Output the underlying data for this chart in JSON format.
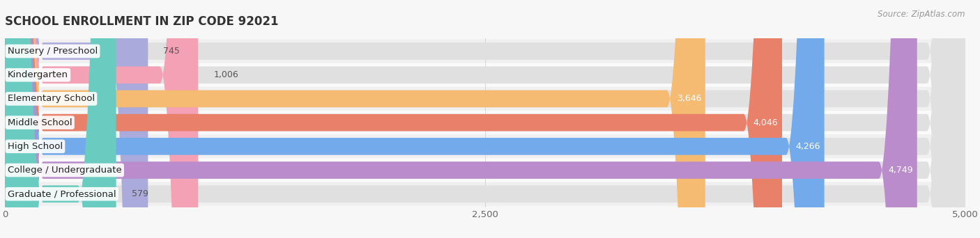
{
  "title": "SCHOOL ENROLLMENT IN ZIP CODE 92021",
  "source": "Source: ZipAtlas.com",
  "categories": [
    "Nursery / Preschool",
    "Kindergarten",
    "Elementary School",
    "Middle School",
    "High School",
    "College / Undergraduate",
    "Graduate / Professional"
  ],
  "values": [
    745,
    1006,
    3646,
    4046,
    4266,
    4749,
    579
  ],
  "bar_colors": [
    "#aaaadc",
    "#f4a0b5",
    "#f5bb72",
    "#e8806a",
    "#72aaec",
    "#bb8ccc",
    "#6accc0"
  ],
  "value_label_colors": [
    "#555555",
    "#555555",
    "#ffffff",
    "#ffffff",
    "#ffffff",
    "#ffffff",
    "#555555"
  ],
  "row_bg_colors": [
    "#f0f0f0",
    "#fafafa",
    "#f0f0f0",
    "#fafafa",
    "#f0f0f0",
    "#fafafa",
    "#f0f0f0"
  ],
  "xlim": [
    0,
    5000
  ],
  "xticks": [
    0,
    2500,
    5000
  ],
  "xtick_labels": [
    "0",
    "2,500",
    "5,000"
  ],
  "background_color": "#f7f7f7",
  "title_fontsize": 12,
  "label_fontsize": 9.5,
  "value_fontsize": 9,
  "source_fontsize": 8.5
}
